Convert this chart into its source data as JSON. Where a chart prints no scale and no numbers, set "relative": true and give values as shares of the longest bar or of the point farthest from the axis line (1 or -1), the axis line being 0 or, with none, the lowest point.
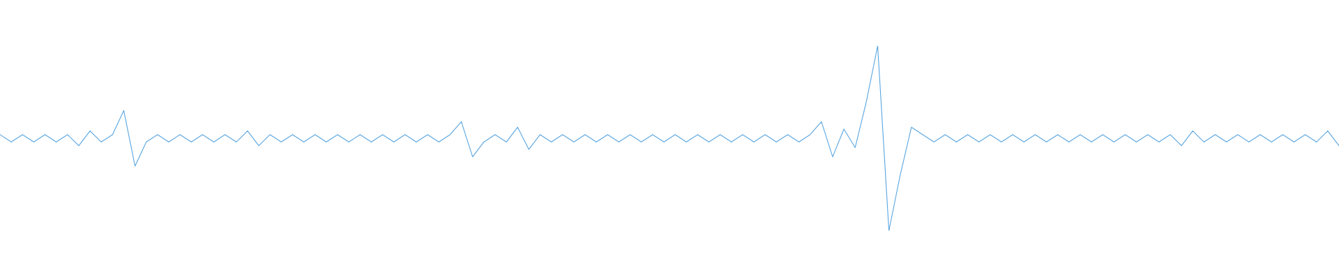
{
  "chart_data": {
    "type": "line",
    "relative": true,
    "categories": [
      null,
      null,
      null,
      null,
      null,
      null,
      null,
      null,
      null,
      null,
      null,
      null,
      null,
      null,
      null,
      null,
      null,
      null,
      null,
      null,
      null,
      null,
      null,
      null,
      null,
      null,
      null,
      null,
      null,
      null,
      null,
      null,
      null,
      null,
      null,
      null,
      null,
      null,
      null,
      null,
      null,
      null,
      null,
      null,
      null,
      null,
      null,
      null,
      null,
      null,
      null,
      null,
      null,
      null,
      null,
      null,
      null,
      null,
      null,
      null,
      null,
      null,
      null,
      null,
      null,
      null,
      null,
      null,
      null,
      null,
      null,
      null,
      null,
      null,
      null,
      null,
      null,
      null,
      null,
      null,
      null,
      null,
      null,
      null,
      null,
      null,
      null,
      null,
      null,
      null,
      null,
      null,
      null,
      null,
      null,
      null,
      null,
      null,
      null,
      null,
      null,
      null,
      null,
      null,
      null,
      null,
      null,
      null,
      null,
      null,
      null,
      null,
      null,
      null,
      null,
      null,
      null,
      null,
      null,
      null
    ],
    "series": [
      {
        "color": "#5aa6e0",
        "values": [
          0.52,
          0.48,
          0.52,
          0.48,
          0.52,
          0.48,
          0.52,
          0.46,
          0.54,
          0.48,
          0.52,
          0.65,
          0.35,
          0.48,
          0.52,
          0.48,
          0.52,
          0.48,
          0.52,
          0.48,
          0.52,
          0.48,
          0.54,
          0.46,
          0.52,
          0.48,
          0.52,
          0.48,
          0.52,
          0.48,
          0.52,
          0.48,
          0.52,
          0.48,
          0.52,
          0.48,
          0.52,
          0.48,
          0.52,
          0.48,
          0.52,
          0.59,
          0.4,
          0.48,
          0.52,
          0.48,
          0.56,
          0.44,
          0.52,
          0.48,
          0.52,
          0.48,
          0.52,
          0.48,
          0.52,
          0.48,
          0.52,
          0.48,
          0.52,
          0.48,
          0.52,
          0.48,
          0.52,
          0.48,
          0.52,
          0.48,
          0.52,
          0.48,
          0.52,
          0.48,
          0.52,
          0.48,
          0.52,
          0.59,
          0.4,
          0.55,
          0.45,
          0.7,
          1.0,
          0.0,
          0.3,
          0.56,
          0.52,
          0.48,
          0.52,
          0.48,
          0.52,
          0.48,
          0.52,
          0.48,
          0.52,
          0.48,
          0.52,
          0.48,
          0.52,
          0.48,
          0.52,
          0.48,
          0.52,
          0.48,
          0.52,
          0.48,
          0.52,
          0.48,
          0.52,
          0.46,
          0.54,
          0.48,
          0.52,
          0.48,
          0.52,
          0.48,
          0.52,
          0.48,
          0.52,
          0.48,
          0.52,
          0.48,
          0.54,
          0.46
        ]
      }
    ]
  }
}
